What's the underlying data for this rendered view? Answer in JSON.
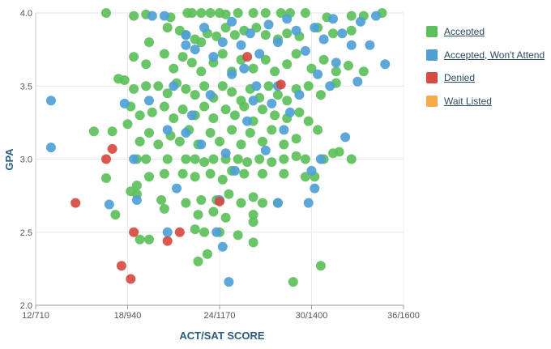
{
  "chart_data": {
    "type": "scatter",
    "title": "",
    "xlabel": "ACT/SAT SCORE",
    "ylabel": "GPA",
    "x_ticks": [
      "12/710",
      "18/940",
      "24/1170",
      "30/1400",
      "36/1600"
    ],
    "x_tick_values": [
      12,
      18,
      24,
      30,
      36
    ],
    "xlim": [
      12,
      36
    ],
    "ylim": [
      2.0,
      4.0
    ],
    "y_ticks": [
      "2.0",
      "2.5",
      "3.0",
      "3.5",
      "4.0"
    ],
    "y_tick_values": [
      2.0,
      2.5,
      3.0,
      3.5,
      4.0
    ],
    "grid": true,
    "legend_position": "right",
    "series": [
      {
        "name": "Accepted",
        "color": "#5cc05a",
        "points": [
          [
            16.6,
            4.0
          ],
          [
            18.4,
            3.98
          ],
          [
            19.2,
            3.99
          ],
          [
            20.8,
            3.97
          ],
          [
            21.9,
            4.0
          ],
          [
            22.2,
            4.0
          ],
          [
            22.8,
            4.0
          ],
          [
            23.4,
            4.0
          ],
          [
            24.0,
            4.0
          ],
          [
            24.4,
            3.99
          ],
          [
            25.2,
            4.0
          ],
          [
            26.2,
            4.0
          ],
          [
            27.0,
            4.0
          ],
          [
            28.0,
            4.0
          ],
          [
            28.6,
            4.0
          ],
          [
            29.6,
            4.0
          ],
          [
            31.0,
            3.97
          ],
          [
            32.6,
            3.98
          ],
          [
            33.4,
            3.98
          ],
          [
            34.6,
            4.0
          ],
          [
            19.4,
            3.8
          ],
          [
            20.6,
            3.9
          ],
          [
            21.4,
            3.88
          ],
          [
            21.8,
            3.85
          ],
          [
            22.4,
            3.82
          ],
          [
            22.8,
            3.8
          ],
          [
            23.2,
            3.86
          ],
          [
            23.8,
            3.84
          ],
          [
            24.4,
            3.9
          ],
          [
            25.0,
            3.85
          ],
          [
            25.6,
            3.88
          ],
          [
            26.4,
            3.9
          ],
          [
            27.0,
            3.85
          ],
          [
            27.8,
            3.82
          ],
          [
            28.4,
            3.86
          ],
          [
            29.2,
            3.84
          ],
          [
            30.4,
            3.9
          ],
          [
            31.4,
            3.86
          ],
          [
            32.6,
            3.88
          ],
          [
            18.4,
            3.7
          ],
          [
            19.2,
            3.65
          ],
          [
            20.4,
            3.72
          ],
          [
            21.0,
            3.62
          ],
          [
            21.6,
            3.7
          ],
          [
            22.2,
            3.66
          ],
          [
            22.8,
            3.6
          ],
          [
            23.6,
            3.66
          ],
          [
            24.2,
            3.72
          ],
          [
            24.8,
            3.6
          ],
          [
            25.4,
            3.68
          ],
          [
            26.2,
            3.62
          ],
          [
            27.0,
            3.68
          ],
          [
            27.6,
            3.6
          ],
          [
            28.4,
            3.65
          ],
          [
            29.0,
            3.72
          ],
          [
            30.0,
            3.62
          ],
          [
            30.8,
            3.68
          ],
          [
            31.6,
            3.6
          ],
          [
            32.4,
            3.64
          ],
          [
            33.4,
            3.6
          ],
          [
            17.4,
            3.55
          ],
          [
            17.8,
            3.54
          ],
          [
            18.4,
            3.48
          ],
          [
            19.2,
            3.5
          ],
          [
            20.0,
            3.5
          ],
          [
            20.6,
            3.45
          ],
          [
            21.2,
            3.52
          ],
          [
            21.8,
            3.48
          ],
          [
            22.4,
            3.44
          ],
          [
            23.0,
            3.5
          ],
          [
            23.6,
            3.42
          ],
          [
            24.2,
            3.5
          ],
          [
            24.8,
            3.46
          ],
          [
            25.4,
            3.4
          ],
          [
            26.0,
            3.48
          ],
          [
            26.6,
            3.42
          ],
          [
            27.2,
            3.5
          ],
          [
            27.8,
            3.44
          ],
          [
            28.4,
            3.4
          ],
          [
            29.0,
            3.48
          ],
          [
            29.8,
            3.5
          ],
          [
            30.6,
            3.44
          ],
          [
            31.6,
            3.52
          ],
          [
            18.2,
            3.36
          ],
          [
            18.8,
            3.3
          ],
          [
            19.6,
            3.32
          ],
          [
            20.4,
            3.36
          ],
          [
            21.0,
            3.28
          ],
          [
            21.6,
            3.34
          ],
          [
            22.4,
            3.3
          ],
          [
            23.0,
            3.36
          ],
          [
            23.6,
            3.28
          ],
          [
            24.4,
            3.34
          ],
          [
            25.0,
            3.3
          ],
          [
            25.6,
            3.36
          ],
          [
            26.2,
            3.26
          ],
          [
            26.8,
            3.34
          ],
          [
            27.6,
            3.3
          ],
          [
            28.4,
            3.28
          ],
          [
            29.2,
            3.32
          ],
          [
            29.8,
            3.26
          ],
          [
            17.0,
            3.19
          ],
          [
            18.0,
            3.24
          ],
          [
            18.8,
            3.12
          ],
          [
            19.4,
            3.18
          ],
          [
            20.0,
            3.1
          ],
          [
            20.8,
            3.16
          ],
          [
            21.4,
            3.12
          ],
          [
            22.0,
            3.2
          ],
          [
            22.6,
            3.1
          ],
          [
            23.4,
            3.18
          ],
          [
            24.0,
            3.12
          ],
          [
            24.8,
            3.2
          ],
          [
            25.4,
            3.1
          ],
          [
            26.0,
            3.18
          ],
          [
            26.8,
            3.12
          ],
          [
            27.4,
            3.2
          ],
          [
            28.2,
            3.1
          ],
          [
            29.0,
            3.14
          ],
          [
            30.4,
            3.2
          ],
          [
            31.8,
            3.05
          ],
          [
            15.8,
            3.19
          ],
          [
            18.6,
            3.0
          ],
          [
            19.2,
            3.0
          ],
          [
            20.6,
            3.0
          ],
          [
            21.8,
            3.0
          ],
          [
            22.4,
            3.0
          ],
          [
            23.0,
            2.98
          ],
          [
            23.6,
            3.0
          ],
          [
            24.4,
            3.0
          ],
          [
            25.2,
            3.0
          ],
          [
            25.8,
            2.98
          ],
          [
            26.6,
            3.0
          ],
          [
            27.4,
            2.98
          ],
          [
            28.2,
            3.0
          ],
          [
            29.0,
            3.02
          ],
          [
            29.6,
            3.0
          ],
          [
            30.8,
            3.0
          ],
          [
            31.4,
            3.04
          ],
          [
            32.6,
            3.0
          ],
          [
            16.6,
            2.87
          ],
          [
            18.6,
            2.82
          ],
          [
            19.4,
            2.88
          ],
          [
            20.4,
            2.9
          ],
          [
            21.6,
            2.9
          ],
          [
            22.4,
            2.88
          ],
          [
            23.4,
            2.9
          ],
          [
            24.2,
            2.86
          ],
          [
            24.8,
            2.92
          ],
          [
            25.6,
            2.9
          ],
          [
            26.8,
            2.9
          ],
          [
            28.2,
            2.9
          ],
          [
            29.6,
            2.88
          ],
          [
            30.2,
            2.88
          ],
          [
            18.2,
            2.78
          ],
          [
            18.6,
            2.76
          ],
          [
            20.2,
            2.72
          ],
          [
            21.8,
            2.7
          ],
          [
            22.8,
            2.72
          ],
          [
            23.8,
            2.72
          ],
          [
            24.6,
            2.76
          ],
          [
            25.4,
            2.7
          ],
          [
            26.2,
            2.74
          ],
          [
            26.8,
            2.7
          ],
          [
            27.8,
            2.7
          ],
          [
            17.2,
            2.62
          ],
          [
            20.4,
            2.66
          ],
          [
            22.6,
            2.62
          ],
          [
            23.6,
            2.64
          ],
          [
            24.4,
            2.6
          ],
          [
            26.2,
            2.62
          ],
          [
            26.2,
            2.57
          ],
          [
            18.8,
            2.45
          ],
          [
            19.4,
            2.45
          ],
          [
            22.4,
            2.52
          ],
          [
            23.0,
            2.5
          ],
          [
            24.0,
            2.5
          ],
          [
            25.2,
            2.48
          ],
          [
            26.2,
            2.43
          ],
          [
            22.6,
            2.3
          ],
          [
            23.2,
            2.35
          ],
          [
            30.6,
            2.27
          ],
          [
            28.8,
            2.16
          ]
        ]
      },
      {
        "name": "Accepted, Won't Attend",
        "color": "#4f9fd6",
        "points": [
          [
            13.0,
            3.4
          ],
          [
            13.0,
            3.08
          ],
          [
            16.8,
            2.69
          ],
          [
            17.8,
            3.38
          ],
          [
            18.4,
            3.0
          ],
          [
            18.6,
            2.72
          ],
          [
            19.4,
            3.4
          ],
          [
            20.6,
            3.2
          ],
          [
            20.6,
            2.5
          ],
          [
            21.0,
            3.5
          ],
          [
            21.2,
            2.8
          ],
          [
            21.8,
            3.18
          ],
          [
            22.2,
            3.3
          ],
          [
            22.8,
            3.1
          ],
          [
            23.4,
            3.44
          ],
          [
            23.8,
            2.5
          ],
          [
            24.0,
            2.72
          ],
          [
            24.2,
            2.4
          ],
          [
            24.6,
            2.16
          ],
          [
            24.4,
            3.04
          ],
          [
            25.0,
            2.92
          ],
          [
            25.8,
            3.26
          ],
          [
            26.4,
            3.5
          ],
          [
            27.0,
            3.06
          ],
          [
            27.4,
            3.38
          ],
          [
            27.8,
            2.7
          ],
          [
            28.2,
            3.2
          ],
          [
            28.6,
            3.32
          ],
          [
            29.2,
            3.44
          ],
          [
            29.8,
            2.7
          ],
          [
            30.0,
            2.92
          ],
          [
            30.2,
            2.8
          ],
          [
            30.6,
            3.0
          ],
          [
            31.2,
            3.5
          ],
          [
            32.2,
            3.15
          ],
          [
            33.0,
            3.53
          ],
          [
            34.8,
            3.65
          ],
          [
            21.8,
            3.85
          ],
          [
            22.4,
            3.75
          ],
          [
            23.0,
            3.9
          ],
          [
            23.6,
            3.7
          ],
          [
            24.2,
            3.8
          ],
          [
            24.8,
            3.94
          ],
          [
            25.4,
            3.78
          ],
          [
            26.0,
            3.86
          ],
          [
            26.6,
            3.72
          ],
          [
            27.2,
            3.92
          ],
          [
            27.8,
            3.8
          ],
          [
            28.4,
            3.96
          ],
          [
            29.0,
            3.88
          ],
          [
            29.6,
            3.74
          ],
          [
            30.2,
            3.9
          ],
          [
            30.8,
            3.82
          ],
          [
            31.4,
            3.96
          ],
          [
            32.0,
            3.86
          ],
          [
            32.6,
            3.78
          ],
          [
            33.2,
            3.94
          ],
          [
            33.8,
            3.78
          ],
          [
            34.2,
            3.98
          ],
          [
            19.6,
            3.98
          ],
          [
            20.4,
            3.98
          ],
          [
            21.8,
            3.78
          ],
          [
            24.8,
            3.58
          ],
          [
            25.6,
            3.62
          ],
          [
            26.2,
            3.4
          ],
          [
            27.8,
            3.5
          ],
          [
            30.4,
            3.58
          ],
          [
            31.6,
            3.66
          ]
        ]
      },
      {
        "name": "Denied",
        "color": "#d64a41",
        "points": [
          [
            14.6,
            2.7
          ],
          [
            16.6,
            3.0
          ],
          [
            17.0,
            3.07
          ],
          [
            17.6,
            2.27
          ],
          [
            18.2,
            2.18
          ],
          [
            18.4,
            2.5
          ],
          [
            20.6,
            2.44
          ],
          [
            21.4,
            2.5
          ],
          [
            24.0,
            2.71
          ],
          [
            25.8,
            3.7
          ],
          [
            28.0,
            3.51
          ]
        ]
      },
      {
        "name": "Wait Listed",
        "color": "#f5a94a",
        "points": []
      }
    ]
  }
}
